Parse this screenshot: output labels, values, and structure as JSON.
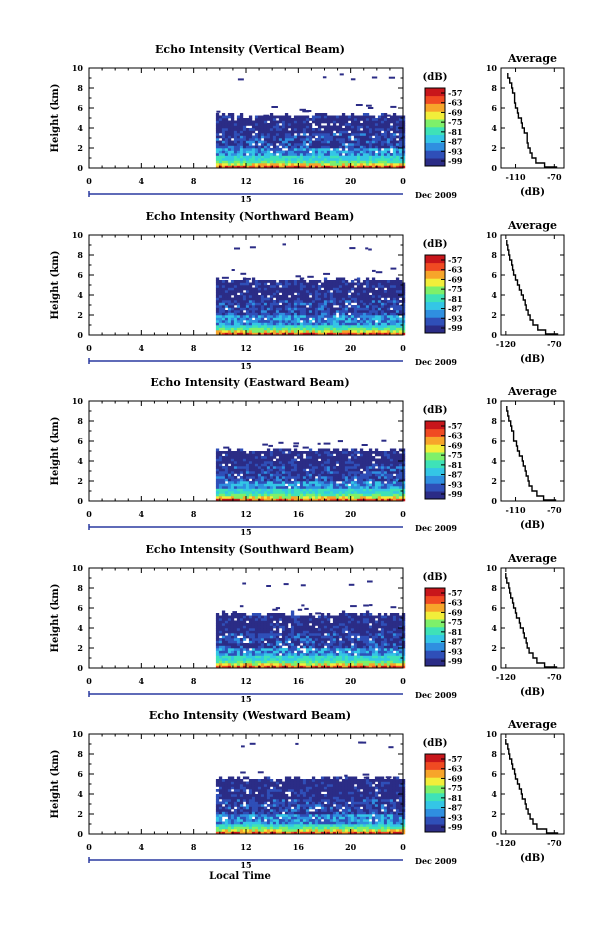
{
  "figure": {
    "xlabel": "Local Time",
    "colorbar_unit": "(dB)",
    "colorbar_ticks": [
      "-57",
      "-63",
      "-69",
      "-75",
      "-81",
      "-87",
      "-93",
      "-99"
    ],
    "colorbar_colors": [
      "#2b2c86",
      "#2f4fb8",
      "#2f8fe0",
      "#34c6e6",
      "#3ee2b8",
      "#7ef06a",
      "#f2ee3a",
      "#f7a52a",
      "#f04a22",
      "#c8161b"
    ],
    "date_label": "Dec 2009",
    "day_label": "15",
    "x_ticks": [
      "0",
      "4",
      "8",
      "12",
      "16",
      "20",
      "0"
    ],
    "y_ticks": [
      "0",
      "2",
      "4",
      "6",
      "8",
      "10"
    ]
  },
  "chart_data": [
    {
      "type": "heatmap",
      "title": "Echo Intensity (Vertical Beam)",
      "ylabel": "Height (km)",
      "xlim": [
        0,
        24
      ],
      "ylim": [
        0,
        10
      ],
      "data_start_hour": 9.7,
      "data_end_hour": 24,
      "echo_top_km": 5.2,
      "sparse_returns_km": [
        5.5,
        6.2,
        9.2
      ],
      "strong_layer_km": [
        0.0,
        1.2
      ],
      "profile": {
        "title": "Average",
        "xlabel": "(dB)",
        "ylabel": "",
        "xticks": [
          "-110",
          "-70"
        ],
        "xlim": [
          -125,
          -60
        ],
        "ylim": [
          0,
          10
        ],
        "height_km": [
          0.1,
          0.5,
          1,
          1.5,
          2,
          2.5,
          3,
          3.5,
          4,
          4.5,
          5,
          5.5,
          6,
          6.5,
          7,
          7.5,
          8,
          8.5,
          9,
          9.5
        ],
        "intensity_db": [
          -67,
          -80,
          -89,
          -93,
          -95,
          -97,
          -98,
          -98,
          -101,
          -103,
          -104,
          -107,
          -108,
          -110,
          -111,
          -111,
          -113,
          -114,
          -116,
          -118
        ]
      }
    },
    {
      "type": "heatmap",
      "title": "Echo Intensity (Northward Beam)",
      "ylabel": "Height (km)",
      "xlim": [
        0,
        24
      ],
      "ylim": [
        0,
        10
      ],
      "data_start_hour": 9.7,
      "data_end_hour": 24,
      "echo_top_km": 5.4,
      "sparse_returns_km": [
        5.8,
        6.5,
        8.9
      ],
      "strong_layer_km": [
        0.0,
        1.0
      ],
      "profile": {
        "title": "Average",
        "xlabel": "(dB)",
        "ylabel": "",
        "xticks": [
          "-120",
          "-70"
        ],
        "xlim": [
          -125,
          -60
        ],
        "ylim": [
          0,
          10
        ],
        "height_km": [
          0.1,
          0.5,
          1,
          1.5,
          2,
          2.5,
          3,
          3.5,
          4,
          4.5,
          5,
          5.5,
          6,
          6.5,
          7,
          7.5,
          8,
          8.5,
          9,
          9.5
        ],
        "intensity_db": [
          -66,
          -79,
          -87,
          -92,
          -95,
          -97,
          -99,
          -100,
          -102,
          -104,
          -106,
          -108,
          -110,
          -112,
          -113,
          -114,
          -116,
          -117,
          -118,
          -119
        ]
      }
    },
    {
      "type": "heatmap",
      "title": "Echo Intensity (Eastward Beam)",
      "ylabel": "Height (km)",
      "xlim": [
        0,
        24
      ],
      "ylim": [
        0,
        10
      ],
      "data_start_hour": 9.7,
      "data_end_hour": 24,
      "echo_top_km": 5.0,
      "sparse_returns_km": [
        5.6,
        6.0
      ],
      "strong_layer_km": [
        0.0,
        1.1
      ],
      "profile": {
        "title": "Average",
        "xlabel": "(dB)",
        "ylabel": "",
        "xticks": [
          "-110",
          "-70"
        ],
        "xlim": [
          -125,
          -60
        ],
        "ylim": [
          0,
          10
        ],
        "height_km": [
          0.1,
          0.5,
          1,
          1.5,
          2,
          2.5,
          3,
          3.5,
          4,
          4.5,
          5,
          5.5,
          6,
          6.5,
          7,
          7.5,
          8,
          8.5,
          9,
          9.5
        ],
        "intensity_db": [
          -68,
          -81,
          -88,
          -93,
          -96,
          -97,
          -99,
          -100,
          -102,
          -103,
          -106,
          -108,
          -109,
          -112,
          -112,
          -114,
          -115,
          -117,
          -118,
          -119
        ]
      }
    },
    {
      "type": "heatmap",
      "title": "Echo Intensity (Southward Beam)",
      "ylabel": "Height (km)",
      "xlim": [
        0,
        24
      ],
      "ylim": [
        0,
        10
      ],
      "data_start_hour": 9.7,
      "data_end_hour": 24,
      "echo_top_km": 5.3,
      "sparse_returns_km": [
        5.8,
        6.4,
        8.5
      ],
      "strong_layer_km": [
        0.0,
        1.2
      ],
      "profile": {
        "title": "Average",
        "xlabel": "(dB)",
        "ylabel": "",
        "xticks": [
          "-120",
          "-70"
        ],
        "xlim": [
          -125,
          -60
        ],
        "ylim": [
          0,
          10
        ],
        "height_km": [
          0.1,
          0.5,
          1,
          1.5,
          2,
          2.5,
          3,
          3.5,
          4,
          4.5,
          5,
          5.5,
          6,
          6.5,
          7,
          7.5,
          8,
          8.5,
          9,
          9.5
        ],
        "intensity_db": [
          -67,
          -80,
          -88,
          -92,
          -96,
          -98,
          -99,
          -101,
          -102,
          -105,
          -106,
          -109,
          -110,
          -112,
          -113,
          -115,
          -116,
          -117,
          -119,
          -120
        ]
      }
    },
    {
      "type": "heatmap",
      "title": "Echo Intensity (Westward Beam)",
      "ylabel": "Height (km)",
      "xlim": [
        0,
        24
      ],
      "ylim": [
        0,
        10
      ],
      "data_start_hour": 9.7,
      "data_end_hour": 24,
      "echo_top_km": 5.5,
      "sparse_returns_km": [
        6.0,
        9.0
      ],
      "strong_layer_km": [
        0.0,
        1.0
      ],
      "profile": {
        "title": "Average",
        "xlabel": "(dB)",
        "ylabel": "",
        "xticks": [
          "-120",
          "-70"
        ],
        "xlim": [
          -125,
          -60
        ],
        "ylim": [
          0,
          10
        ],
        "height_km": [
          0.1,
          0.5,
          1,
          1.5,
          2,
          2.5,
          3,
          3.5,
          4,
          4.5,
          5,
          5.5,
          6,
          6.5,
          7,
          7.5,
          8,
          8.5,
          9,
          9.5
        ],
        "intensity_db": [
          -66,
          -78,
          -88,
          -92,
          -95,
          -97,
          -99,
          -100,
          -103,
          -104,
          -106,
          -108,
          -110,
          -111,
          -113,
          -114,
          -116,
          -117,
          -118,
          -120
        ]
      }
    }
  ]
}
